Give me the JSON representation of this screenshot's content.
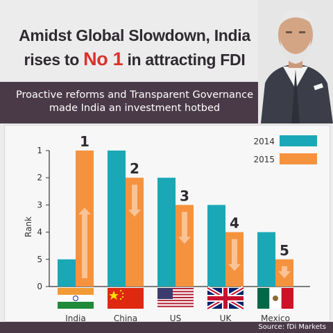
{
  "headline": {
    "line1": "Amidst Global Slowdown, India",
    "line2_prefix": "rises to ",
    "line2_accent": "No 1",
    "line2_suffix": " in attracting FDI"
  },
  "banner": {
    "line1": "Proactive reforms and Transparent Governance",
    "line2": "made India an investment hotbed"
  },
  "source": "Source: fDi Markets",
  "colors": {
    "series_2014": "#1ba8b6",
    "series_2015": "#f5923e",
    "accent": "#d8322c",
    "banner": "#4a3a47"
  },
  "chart_data": {
    "type": "bar",
    "ylabel": "Rank",
    "yticks": [
      "1",
      "2",
      "3",
      "4",
      "5",
      "0"
    ],
    "categories": [
      "India",
      "China",
      "US",
      "UK",
      "Mexico"
    ],
    "series": [
      {
        "name": "2014",
        "values": [
          5,
          1,
          2,
          3,
          4
        ]
      },
      {
        "name": "2015",
        "values": [
          1,
          2,
          3,
          4,
          5
        ]
      }
    ],
    "rank_labels": [
      "1",
      "2",
      "3",
      "4",
      "5"
    ],
    "trend": [
      "up",
      "down",
      "down",
      "down",
      "down"
    ],
    "legend_position": "top-right",
    "flags": [
      "india-flag",
      "china-flag",
      "us-flag",
      "uk-flag",
      "mexico-flag"
    ],
    "grid": false
  }
}
